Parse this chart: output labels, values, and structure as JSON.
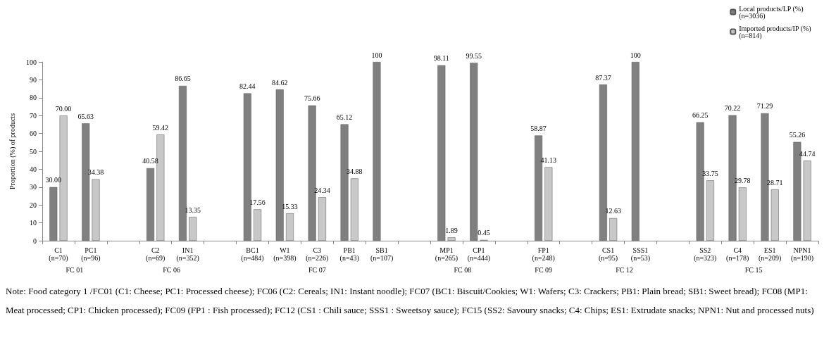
{
  "chart_data": {
    "type": "bar",
    "ylabel": "Proportion (%) of products",
    "categories": [
      "C1\n(n=70)",
      "PC1\n(n=96)",
      null,
      "C2\n(n=69)",
      "IN1\n(n=352)",
      null,
      "BC1\n(n=484)",
      "W1\n(n=398)",
      "C3\n(n=226)",
      "PB1\n(n=43)",
      "SB1\n(n=107)",
      null,
      "MP1\n(n=265)",
      "CP1\n(n=444)",
      null,
      "FP1\n(n=248)",
      null,
      "CS1\n(n=95)",
      "SSS1\n(n=53)",
      null,
      "SS2\n(n=323)",
      "C4\n(n=178)",
      "ES1\n(n=209)",
      "NPN1\n(n=190)"
    ],
    "series": [
      {
        "name": "Local products/LP (%)\n(n=3036)",
        "color": "#808080",
        "values": [
          30.0,
          65.63,
          null,
          40.58,
          86.65,
          null,
          82.44,
          84.62,
          75.66,
          65.12,
          100,
          null,
          98.11,
          99.55,
          null,
          58.87,
          null,
          87.37,
          100,
          null,
          66.25,
          70.22,
          71.29,
          55.26
        ],
        "value_labels": [
          "30.00",
          "65.63",
          null,
          "40.58",
          "86.65",
          null,
          "82.44",
          "84.62",
          "75.66",
          "65.12",
          "100",
          null,
          "98.11",
          "99.55",
          null,
          "58.87",
          null,
          "87.37",
          "100",
          null,
          "66.25",
          "70.22",
          "71.29",
          "55.26"
        ]
      },
      {
        "name": "Imported products/IP (%)\n(n=814)",
        "color": "#c8c8c8",
        "values": [
          70.0,
          34.38,
          null,
          59.42,
          13.35,
          null,
          17.56,
          15.33,
          24.34,
          34.88,
          null,
          null,
          1.89,
          0.45,
          null,
          41.13,
          null,
          12.63,
          null,
          null,
          33.75,
          29.78,
          28.71,
          44.74
        ],
        "value_labels": [
          "70.00",
          "34.38",
          null,
          "59.42",
          "13.35",
          null,
          "17.56",
          "15.33",
          "24.34",
          "34.88",
          null,
          null,
          "1.89",
          "0.45",
          null,
          "41.13",
          null,
          "12.63",
          null,
          null,
          "33.75",
          "29.78",
          "28.71",
          "44.74"
        ]
      }
    ],
    "ylim": [
      0,
      100
    ],
    "yticks": [
      0,
      10,
      20,
      30,
      40,
      50,
      60,
      70,
      80,
      90,
      100
    ],
    "grid": false,
    "legend": "top right",
    "annotations": [
      "FC 01",
      "FC 06",
      "FC 07",
      "FC 08",
      "FC 09",
      "FC 12",
      "FC 15",
      "Note: Food category 1 /FC01 (C1: Cheese; PC1: Processed cheese); FC06 (C2: Cereals; IN1: Instant noodle);  FC07 (BC1: Biscuit/Cookies; W1: Wafers; C3: Crackers; PB1: Plain bread; SB1: Sweet bread); FC08 (MP1: Meat processed; CP1: Chicken processed); FC09 (FP1 : Fish processed); FC12 (CS1 : Chili sauce; SSS1 : Sweetsoy sauce); FC15 (SS2: Savoury snacks; C4: Chips; ES1: Extrudate snacks; NPN1: Nut and processed nuts)"
    ]
  }
}
